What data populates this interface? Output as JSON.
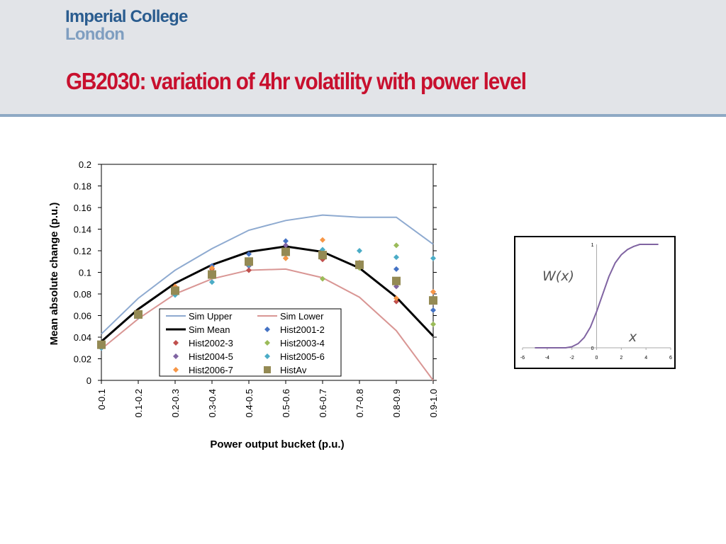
{
  "header": {
    "logo_line1": "Imperial College",
    "logo_line2": "London",
    "title": "GB2030: variation of 4hr volatility with power level",
    "title_color": "#c8102e",
    "logo_color": "#2a5c8f"
  },
  "chart_data": [
    {
      "type": "line",
      "xlabel": "Power output bucket (p.u.)",
      "ylabel": "Mean absolute change (p.u.)",
      "ylim": [
        0,
        0.2
      ],
      "yticks": [
        "0",
        "0.02",
        "0.04",
        "0.06",
        "0.08",
        "0.1",
        "0.12",
        "0.14",
        "0.16",
        "0.18",
        "0.2"
      ],
      "categories": [
        "0-0.1",
        "0.1-0.2",
        "0.2-0.3",
        "0.3-0.4",
        "0.4-0.5",
        "0.5-0.6",
        "0.6-0.7",
        "0.7-0.8",
        "0.8-0.9",
        "0.9-1.0"
      ],
      "legend_position": "bottom-center inside plot",
      "series": [
        {
          "name": "Sim Upper",
          "kind": "line",
          "color": "#8eaad0",
          "values": [
            0.043,
            0.076,
            0.102,
            0.122,
            0.139,
            0.148,
            0.153,
            0.151,
            0.151,
            0.126
          ]
        },
        {
          "name": "Sim Lower",
          "kind": "line",
          "color": "#d99694",
          "values": [
            0.029,
            0.057,
            0.08,
            0.094,
            0.102,
            0.103,
            0.095,
            0.077,
            0.046,
            0.0
          ]
        },
        {
          "name": "Sim Mean",
          "kind": "line",
          "color": "#000000",
          "values": [
            0.036,
            0.066,
            0.09,
            0.107,
            0.119,
            0.124,
            0.119,
            0.104,
            0.077,
            0.041
          ]
        },
        {
          "name": "Hist2001-2",
          "kind": "diamond",
          "color": "#4472c4",
          "values": [
            0.03,
            0.061,
            0.082,
            0.106,
            0.117,
            0.129,
            0.118,
            0.106,
            0.103,
            0.065
          ]
        },
        {
          "name": "Hist2002-3",
          "kind": "diamond",
          "color": "#c0504d",
          "values": [
            0.032,
            0.062,
            0.084,
            0.103,
            0.102,
            0.113,
            0.112,
            0.106,
            0.073,
            0.082
          ]
        },
        {
          "name": "Hist2003-4",
          "kind": "diamond",
          "color": "#9bbb59",
          "values": [
            0.033,
            0.062,
            0.085,
            0.096,
            0.11,
            0.113,
            0.094,
            0.104,
            0.125,
            0.052
          ]
        },
        {
          "name": "Hist2004-5",
          "kind": "diamond",
          "color": "#8064a2",
          "values": [
            0.032,
            0.06,
            0.083,
            0.097,
            0.106,
            0.125,
            0.116,
            0.106,
            0.087,
            0.072
          ]
        },
        {
          "name": "Hist2005-6",
          "kind": "diamond",
          "color": "#4bacc6",
          "values": [
            0.03,
            0.059,
            0.079,
            0.091,
            0.107,
            0.12,
            0.121,
            0.12,
            0.114,
            0.113
          ]
        },
        {
          "name": "Hist2006-7",
          "kind": "diamond",
          "color": "#f79646",
          "values": [
            0.034,
            0.063,
            0.087,
            0.104,
            0.111,
            0.113,
            0.13,
            0.109,
            0.076,
            0.082
          ]
        },
        {
          "name": "HistAv",
          "kind": "square",
          "color": "#948a54",
          "values": [
            0.033,
            0.061,
            0.083,
            0.098,
            0.11,
            0.119,
            0.116,
            0.107,
            0.092,
            0.074
          ]
        }
      ]
    },
    {
      "type": "line",
      "title": "",
      "series_label": "W(x)",
      "xlabel": "x",
      "xlim": [
        -6,
        6
      ],
      "ylim": [
        0,
        1
      ],
      "xticks": [
        "-6",
        "-4",
        "-2",
        "0",
        "2",
        "4",
        "6"
      ],
      "yticks": [
        "0",
        "1"
      ],
      "curve_color": "#8064a2",
      "curve": {
        "x": [
          -5,
          -4.5,
          -4,
          -3.5,
          -3,
          -2.5,
          -2,
          -1.5,
          -1,
          -0.5,
          0,
          0.5,
          1,
          1.5,
          2,
          2.5,
          3,
          3.5,
          4,
          4.5,
          5
        ],
        "y": [
          0,
          0,
          0,
          0,
          0,
          0,
          0.01,
          0.04,
          0.1,
          0.2,
          0.35,
          0.52,
          0.69,
          0.82,
          0.9,
          0.95,
          0.98,
          1.0,
          1.0,
          1.0,
          1.0
        ]
      }
    }
  ]
}
